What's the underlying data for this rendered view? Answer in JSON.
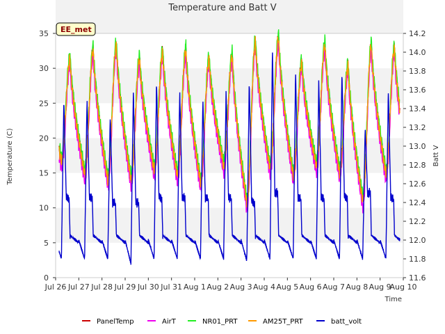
{
  "chart_data": {
    "type": "line",
    "title": "Temperature and Batt V",
    "site_label": "EE_met",
    "xlabel": "Time",
    "ylabel_left": "Temperature (C)",
    "ylabel_right": "Batt V",
    "x_ticks": [
      "Jul 26",
      "Jul 27",
      "Jul 28",
      "Jul 29",
      "Jul 30",
      "Jul 31",
      "Aug 1",
      "Aug 2",
      "Aug 3",
      "Aug 4",
      "Aug 5",
      "Aug 6",
      "Aug 7",
      "Aug 8",
      "Aug 9",
      "Aug 10"
    ],
    "xlim_days": [
      0,
      15
    ],
    "ylim_left": [
      0,
      35
    ],
    "ylim_right": [
      11.6,
      14.2
    ],
    "yticks_left": [
      "0",
      "5",
      "10",
      "15",
      "20",
      "25",
      "30",
      "35"
    ],
    "yticks_right": [
      "11.6",
      "11.8",
      "12.0",
      "12.2",
      "12.4",
      "12.6",
      "12.8",
      "13.0",
      "13.2",
      "13.4",
      "13.6",
      "13.8",
      "14.0",
      "14.2"
    ],
    "grid": "horizontal bands",
    "legend_position": "bottom",
    "daily_temperature": {
      "days": [
        "Jul 26",
        "Jul 27",
        "Jul 28",
        "Jul 29",
        "Jul 30",
        "Jul 31",
        "Aug 1",
        "Aug 2",
        "Aug 3",
        "Aug 4",
        "Aug 5",
        "Aug 6",
        "Aug 7",
        "Aug 8",
        "Aug 9"
      ],
      "min": [
        16.8,
        15.0,
        14.2,
        14.2,
        15.6,
        14.8,
        13.8,
        16.2,
        10.8,
        15.8,
        14.8,
        16.2,
        15.2,
        11.2,
        15.0
      ],
      "max": [
        31.5,
        32.8,
        33.5,
        31.5,
        32.5,
        32.8,
        31.5,
        32.0,
        34.0,
        34.5,
        31.0,
        33.5,
        30.5,
        33.5,
        33.0
      ]
    },
    "daily_batt_volt": {
      "days": [
        "Jul 26",
        "Jul 27",
        "Jul 28",
        "Jul 29",
        "Jul 30",
        "Jul 31",
        "Aug 1",
        "Aug 2",
        "Aug 3",
        "Aug 4",
        "Aug 5",
        "Aug 6",
        "Aug 7",
        "Aug 8",
        "Aug 9"
      ],
      "min": [
        11.8,
        11.8,
        11.8,
        11.75,
        11.8,
        11.8,
        11.8,
        11.8,
        11.78,
        11.8,
        11.8,
        11.8,
        11.8,
        11.8,
        11.8
      ],
      "peak": [
        13.5,
        13.5,
        13.3,
        13.6,
        13.7,
        13.6,
        13.5,
        13.6,
        13.7,
        14.05,
        13.8,
        13.7,
        13.8,
        13.2,
        13.6
      ],
      "noon_plateau": [
        12.45,
        12.45,
        12.4,
        12.4,
        12.45,
        12.45,
        12.45,
        12.45,
        12.4,
        12.5,
        12.45,
        12.45,
        12.45,
        12.5,
        12.45
      ]
    },
    "series": [
      {
        "name": "PanelTemp",
        "color": "#cc0000",
        "axis": "left",
        "offset": 0.0
      },
      {
        "name": "AirT",
        "color": "#ee00ee",
        "axis": "left",
        "offset": -1.2
      },
      {
        "name": "NR01_PRT",
        "color": "#22ee22",
        "axis": "left",
        "offset": 0.6
      },
      {
        "name": "AM25T_PRT",
        "color": "#ff9900",
        "axis": "left",
        "offset": -0.2
      },
      {
        "name": "batt_volt",
        "color": "#0000cc",
        "axis": "right",
        "offset": 0.0
      }
    ]
  }
}
